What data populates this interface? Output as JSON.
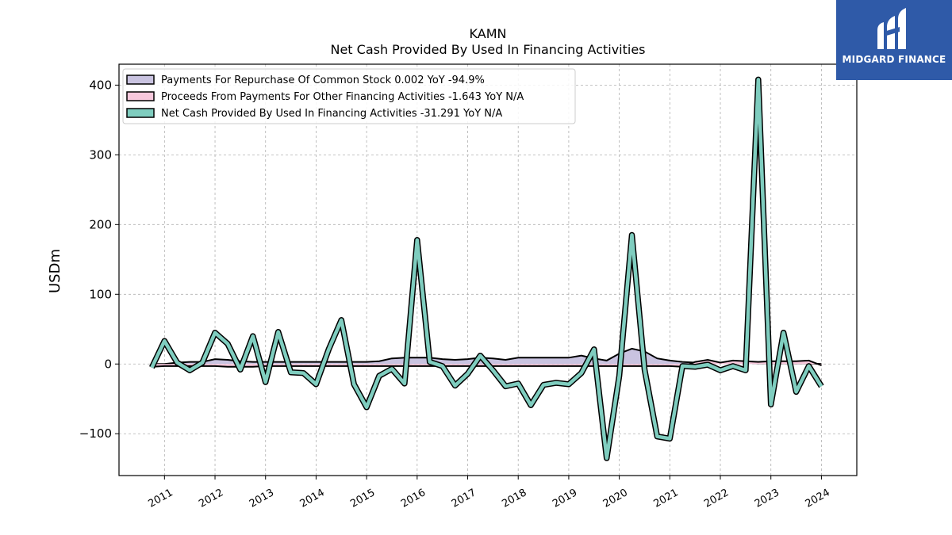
{
  "brand": {
    "name": "MIDGARD FINANCE",
    "color": "#2f5aa8"
  },
  "chart_data": {
    "type": "line",
    "title": "KAMN",
    "subtitle": "Net Cash Provided By Used In Financing Activities",
    "ylabel": "USDm",
    "xlabel": "",
    "ylim": [
      -160,
      430
    ],
    "xlim": [
      2010.1,
      2024.7
    ],
    "yticks": [
      -100,
      0,
      100,
      200,
      300,
      400
    ],
    "ytick_labels": [
      "−100",
      "0",
      "100",
      "200",
      "300",
      "400"
    ],
    "xticks": [
      2011,
      2012,
      2013,
      2014,
      2015,
      2016,
      2017,
      2018,
      2019,
      2020,
      2021,
      2022,
      2023,
      2024
    ],
    "xtick_labels": [
      "2011",
      "2012",
      "2013",
      "2014",
      "2015",
      "2016",
      "2017",
      "2018",
      "2019",
      "2020",
      "2021",
      "2022",
      "2023",
      "2024"
    ],
    "grid": true,
    "legend_position": "top-left",
    "x": [
      2010.75,
      2011.0,
      2011.25,
      2011.5,
      2011.75,
      2012.0,
      2012.25,
      2012.5,
      2012.75,
      2013.0,
      2013.25,
      2013.5,
      2013.75,
      2014.0,
      2014.25,
      2014.5,
      2014.75,
      2015.0,
      2015.25,
      2015.5,
      2015.75,
      2016.0,
      2016.25,
      2016.5,
      2016.75,
      2017.0,
      2017.25,
      2017.5,
      2017.75,
      2018.0,
      2018.25,
      2018.5,
      2018.75,
      2019.0,
      2019.25,
      2019.5,
      2019.75,
      2020.0,
      2020.25,
      2020.5,
      2020.75,
      2021.0,
      2021.25,
      2021.5,
      2021.75,
      2022.0,
      2022.25,
      2022.5,
      2022.75,
      2023.0,
      2023.25,
      2023.5,
      2023.75,
      2024.0
    ],
    "series": [
      {
        "name": "Payments For Repurchase Of Common Stock  0.002 YoY -94.9%",
        "kind": "area",
        "color": "#c9c3e0",
        "values": [
          0,
          0,
          2,
          3,
          3,
          7,
          6,
          4,
          3,
          3,
          3,
          3,
          3,
          3,
          3,
          3,
          3,
          3,
          4,
          8,
          9,
          9,
          9,
          7,
          6,
          7,
          9,
          8,
          6,
          9,
          9,
          9,
          9,
          9,
          12,
          8,
          5,
          15,
          22,
          18,
          8,
          5,
          3,
          2,
          2,
          2,
          2,
          2,
          1,
          1,
          1,
          1,
          1,
          0
        ]
      },
      {
        "name": "Proceeds From Payments For Other Financing Activities  -1.643 YoY N/A",
        "kind": "area",
        "color": "#f7c8dc",
        "values": [
          -4,
          -3,
          -3,
          -3,
          -3,
          -3,
          -4,
          -4,
          -4,
          -3,
          -3,
          -3,
          -3,
          -3,
          -3,
          -3,
          -3,
          -3,
          -3,
          -3,
          -3,
          -3,
          -3,
          -3,
          -3,
          -3,
          -3,
          -3,
          -3,
          -3,
          -3,
          -3,
          -3,
          -3,
          -3,
          -3,
          -3,
          -3,
          -3,
          -3,
          -3,
          -3,
          -4,
          3,
          6,
          2,
          5,
          4,
          3,
          4,
          4,
          4,
          5,
          -2
        ]
      },
      {
        "name": "Net Cash Provided By Used In Financing Activities  -31.291 YoY N/A",
        "kind": "line",
        "color": "#7fcdbf",
        "values": [
          -5,
          33,
          2,
          -9,
          2,
          45,
          29,
          -8,
          40,
          -26,
          46,
          -12,
          -13,
          -29,
          21,
          63,
          -29,
          -62,
          -17,
          -7,
          -28,
          178,
          3,
          -3,
          -31,
          -14,
          12,
          -9,
          -32,
          -28,
          -59,
          -30,
          -27,
          -29,
          -13,
          21,
          -135,
          -17,
          185,
          -8,
          -104,
          -107,
          -3,
          -4,
          -1,
          -9,
          -3,
          -9,
          408,
          -58,
          45,
          -40,
          -3,
          -32
        ]
      }
    ]
  }
}
